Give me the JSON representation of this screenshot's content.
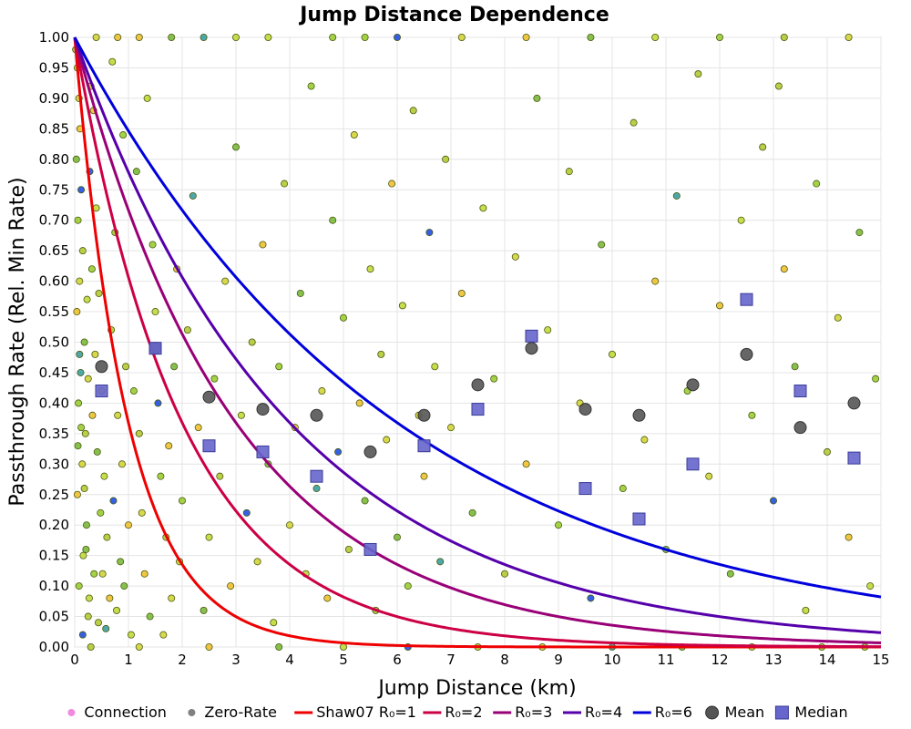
{
  "chart_data": {
    "type": "scatter",
    "title": "Jump Distance Dependence",
    "xlabel": "Jump Distance (km)",
    "ylabel": "Passthrough Rate (Rel. Min Rate)",
    "xlim": [
      0,
      15
    ],
    "ylim": [
      0,
      1
    ],
    "x_ticks": [
      "0",
      "1",
      "2",
      "3",
      "4",
      "5",
      "6",
      "7",
      "8",
      "9",
      "10",
      "11",
      "12",
      "13",
      "14",
      "15"
    ],
    "y_ticks": [
      "0.00",
      "0.05",
      "0.10",
      "0.15",
      "0.20",
      "0.25",
      "0.30",
      "0.35",
      "0.40",
      "0.45",
      "0.50",
      "0.55",
      "0.60",
      "0.65",
      "0.70",
      "0.75",
      "0.80",
      "0.85",
      "0.90",
      "0.95",
      "1.00"
    ],
    "grid": true,
    "legend_position": "bottom",
    "legend": [
      {
        "label": "Connection",
        "kind": "dot",
        "color": "#f28ae0"
      },
      {
        "label": "Zero-Rate",
        "kind": "dot",
        "color": "#808080"
      },
      {
        "label": "Shaw07 R₀=1",
        "kind": "line",
        "color": "#ee0000"
      },
      {
        "label": "R₀=2",
        "kind": "line",
        "color": "#cc0044"
      },
      {
        "label": "R₀=3",
        "kind": "line",
        "color": "#990077"
      },
      {
        "label": "R₀=4",
        "kind": "line",
        "color": "#5500aa"
      },
      {
        "label": "R₀=6",
        "kind": "line",
        "color": "#0000dd"
      },
      {
        "label": "Mean",
        "kind": "circle",
        "color": "#555555"
      },
      {
        "label": "Median",
        "kind": "square",
        "color": "#6666cc"
      }
    ],
    "curves": [
      {
        "name": "Shaw07 R₀=1",
        "R0": 1,
        "color": "#ee0000"
      },
      {
        "name": "R₀=2",
        "R0": 2,
        "color": "#cc0044"
      },
      {
        "name": "R₀=3",
        "R0": 3,
        "color": "#990077"
      },
      {
        "name": "R₀=4",
        "R0": 4,
        "color": "#5500aa"
      },
      {
        "name": "R₀=6",
        "R0": 6,
        "color": "#0000dd"
      }
    ],
    "mean": {
      "x": [
        0.5,
        1.5,
        2.5,
        3.5,
        4.5,
        5.5,
        6.5,
        7.5,
        8.5,
        9.5,
        10.5,
        11.5,
        12.5,
        13.5,
        14.5
      ],
      "y": [
        0.46,
        0.49,
        0.41,
        0.39,
        0.38,
        0.32,
        0.38,
        0.43,
        0.49,
        0.39,
        0.38,
        0.43,
        0.48,
        0.36,
        0.4
      ]
    },
    "median": {
      "x": [
        0.5,
        1.5,
        2.5,
        3.5,
        4.5,
        5.5,
        6.5,
        7.5,
        8.5,
        9.5,
        10.5,
        11.5,
        12.5,
        13.5,
        14.5
      ],
      "y": [
        0.42,
        0.49,
        0.33,
        0.32,
        0.28,
        0.16,
        0.33,
        0.39,
        0.51,
        0.26,
        0.21,
        0.3,
        0.57,
        0.42,
        0.31
      ]
    },
    "scatter_colors": [
      "#9acd32",
      "#b5c934",
      "#d4d43a",
      "#f0c030",
      "#7aba3a",
      "#c2d838"
    ],
    "scatter_accent_colors": [
      "#1f4fe0",
      "#3aa0a0"
    ],
    "scatter": [
      [
        0.02,
        0.98
      ],
      [
        0.05,
        0.95
      ],
      [
        0.08,
        0.9
      ],
      [
        0.1,
        0.85
      ],
      [
        0.03,
        0.8
      ],
      [
        0.12,
        0.75
      ],
      [
        0.06,
        0.7
      ],
      [
        0.15,
        0.65
      ],
      [
        0.09,
        0.6
      ],
      [
        0.04,
        0.55
      ],
      [
        0.18,
        0.5
      ],
      [
        0.11,
        0.45
      ],
      [
        0.07,
        0.4
      ],
      [
        0.2,
        0.35
      ],
      [
        0.14,
        0.3
      ],
      [
        0.05,
        0.25
      ],
      [
        0.22,
        0.2
      ],
      [
        0.16,
        0.15
      ],
      [
        0.08,
        0.1
      ],
      [
        0.25,
        0.05
      ],
      [
        0.3,
        0.92
      ],
      [
        0.35,
        0.88
      ],
      [
        0.28,
        0.78
      ],
      [
        0.4,
        0.72
      ],
      [
        0.32,
        0.62
      ],
      [
        0.45,
        0.58
      ],
      [
        0.38,
        0.48
      ],
      [
        0.5,
        0.42
      ],
      [
        0.42,
        0.32
      ],
      [
        0.55,
        0.28
      ],
      [
        0.48,
        0.22
      ],
      [
        0.6,
        0.18
      ],
      [
        0.52,
        0.12
      ],
      [
        0.65,
        0.08
      ],
      [
        0.58,
        0.03
      ],
      [
        0.7,
        0.96
      ],
      [
        0.75,
        0.68
      ],
      [
        0.68,
        0.52
      ],
      [
        0.8,
        0.38
      ],
      [
        0.72,
        0.24
      ],
      [
        0.85,
        0.14
      ],
      [
        0.78,
        0.06
      ],
      [
        0.9,
        0.84
      ],
      [
        0.95,
        0.46
      ],
      [
        0.88,
        0.3
      ],
      [
        1.0,
        0.2
      ],
      [
        0.92,
        0.1
      ],
      [
        1.05,
        0.02
      ],
      [
        0.12,
        0.36
      ],
      [
        0.18,
        0.26
      ],
      [
        0.25,
        0.44
      ],
      [
        0.33,
        0.38
      ],
      [
        0.21,
        0.16
      ],
      [
        0.27,
        0.08
      ],
      [
        0.36,
        0.12
      ],
      [
        0.44,
        0.04
      ],
      [
        0.15,
        0.02
      ],
      [
        0.09,
        0.48
      ],
      [
        0.06,
        0.33
      ],
      [
        0.23,
        0.57
      ],
      [
        1.1,
        0.42
      ],
      [
        1.2,
        0.35
      ],
      [
        1.25,
        0.22
      ],
      [
        1.3,
        0.12
      ],
      [
        1.4,
        0.05
      ],
      [
        1.5,
        0.55
      ],
      [
        1.6,
        0.28
      ],
      [
        1.7,
        0.18
      ],
      [
        1.8,
        0.08
      ],
      [
        1.9,
        0.62
      ],
      [
        1.15,
        0.78
      ],
      [
        1.35,
        0.9
      ],
      [
        1.45,
        0.66
      ],
      [
        1.55,
        0.4
      ],
      [
        1.65,
        0.02
      ],
      [
        1.75,
        0.33
      ],
      [
        1.85,
        0.46
      ],
      [
        1.95,
        0.14
      ],
      [
        2.0,
        0.24
      ],
      [
        2.1,
        0.52
      ],
      [
        2.2,
        0.74
      ],
      [
        2.3,
        0.36
      ],
      [
        2.4,
        0.06
      ],
      [
        2.5,
        0.18
      ],
      [
        2.6,
        0.44
      ],
      [
        2.7,
        0.28
      ],
      [
        2.8,
        0.6
      ],
      [
        2.9,
        0.1
      ],
      [
        3.0,
        0.82
      ],
      [
        3.1,
        0.38
      ],
      [
        3.2,
        0.22
      ],
      [
        3.3,
        0.5
      ],
      [
        3.4,
        0.14
      ],
      [
        3.5,
        0.66
      ],
      [
        3.6,
        0.3
      ],
      [
        3.7,
        0.04
      ],
      [
        3.8,
        0.46
      ],
      [
        3.9,
        0.76
      ],
      [
        4.0,
        0.2
      ],
      [
        4.1,
        0.36
      ],
      [
        4.2,
        0.58
      ],
      [
        4.3,
        0.12
      ],
      [
        4.4,
        0.92
      ],
      [
        4.5,
        0.26
      ],
      [
        4.6,
        0.42
      ],
      [
        4.7,
        0.08
      ],
      [
        4.8,
        0.7
      ],
      [
        4.9,
        0.32
      ],
      [
        5.0,
        0.54
      ],
      [
        5.1,
        0.16
      ],
      [
        5.2,
        0.84
      ],
      [
        5.3,
        0.4
      ],
      [
        5.4,
        0.24
      ],
      [
        5.5,
        0.62
      ],
      [
        5.6,
        0.06
      ],
      [
        5.7,
        0.48
      ],
      [
        5.8,
        0.34
      ],
      [
        5.9,
        0.76
      ],
      [
        6.0,
        0.18
      ],
      [
        6.1,
        0.56
      ],
      [
        6.2,
        0.1
      ],
      [
        6.3,
        0.88
      ],
      [
        6.4,
        0.38
      ],
      [
        6.5,
        0.28
      ],
      [
        6.6,
        0.68
      ],
      [
        6.7,
        0.46
      ],
      [
        6.8,
        0.14
      ],
      [
        6.9,
        0.8
      ],
      [
        7.0,
        0.36
      ],
      [
        7.2,
        0.58
      ],
      [
        7.4,
        0.22
      ],
      [
        7.6,
        0.72
      ],
      [
        7.8,
        0.44
      ],
      [
        8.0,
        0.12
      ],
      [
        8.2,
        0.64
      ],
      [
        8.4,
        0.3
      ],
      [
        8.6,
        0.9
      ],
      [
        8.8,
        0.52
      ],
      [
        9.0,
        0.2
      ],
      [
        9.2,
        0.78
      ],
      [
        9.4,
        0.4
      ],
      [
        9.6,
        0.08
      ],
      [
        9.8,
        0.66
      ],
      [
        10.0,
        0.48
      ],
      [
        10.2,
        0.26
      ],
      [
        10.4,
        0.86
      ],
      [
        10.6,
        0.34
      ],
      [
        10.8,
        0.6
      ],
      [
        11.0,
        0.16
      ],
      [
        11.2,
        0.74
      ],
      [
        11.4,
        0.42
      ],
      [
        11.6,
        0.94
      ],
      [
        11.8,
        0.28
      ],
      [
        12.0,
        0.56
      ],
      [
        12.2,
        0.12
      ],
      [
        12.4,
        0.7
      ],
      [
        12.6,
        0.38
      ],
      [
        12.8,
        0.82
      ],
      [
        13.0,
        0.24
      ],
      [
        13.2,
        0.62
      ],
      [
        13.4,
        0.46
      ],
      [
        13.6,
        0.06
      ],
      [
        13.8,
        0.76
      ],
      [
        14.0,
        0.32
      ],
      [
        14.2,
        0.54
      ],
      [
        14.4,
        0.18
      ],
      [
        14.6,
        0.68
      ],
      [
        14.8,
        0.1
      ],
      [
        14.9,
        0.44
      ],
      [
        13.1,
        0.92
      ],
      [
        0.4,
        1.0
      ],
      [
        1.2,
        1.0
      ],
      [
        2.4,
        1.0
      ],
      [
        3.6,
        1.0
      ],
      [
        4.8,
        1.0
      ],
      [
        6.0,
        1.0
      ],
      [
        7.2,
        1.0
      ],
      [
        8.4,
        1.0
      ],
      [
        9.6,
        1.0
      ],
      [
        10.8,
        1.0
      ],
      [
        12.0,
        1.0
      ],
      [
        13.2,
        1.0
      ],
      [
        14.4,
        1.0
      ],
      [
        0.8,
        1.0
      ],
      [
        1.8,
        1.0
      ],
      [
        3.0,
        1.0
      ],
      [
        5.4,
        1.0
      ],
      [
        0.3,
        0.0
      ],
      [
        1.2,
        0.0
      ],
      [
        2.5,
        0.0
      ],
      [
        3.8,
        0.0
      ],
      [
        5.0,
        0.0
      ],
      [
        6.2,
        0.0
      ],
      [
        7.5,
        0.0
      ],
      [
        8.7,
        0.0
      ],
      [
        10.0,
        0.0
      ],
      [
        11.3,
        0.0
      ],
      [
        12.6,
        0.0
      ],
      [
        13.9,
        0.0
      ],
      [
        14.7,
        0.0
      ]
    ]
  }
}
